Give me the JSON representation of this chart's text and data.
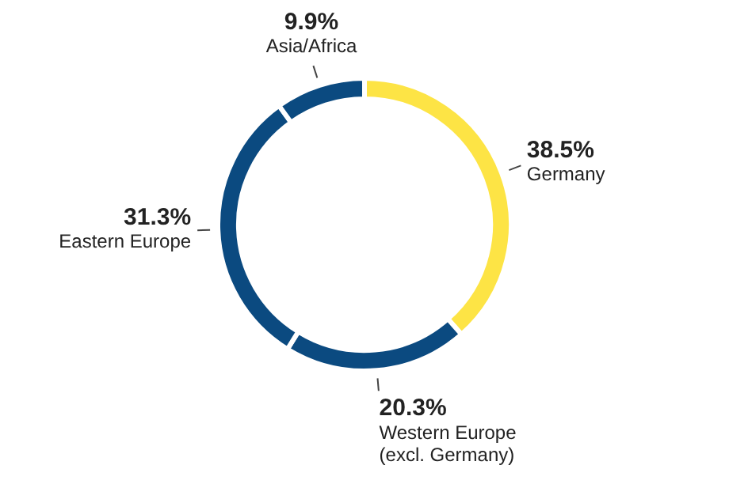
{
  "chart_data": {
    "type": "donut",
    "categories": [
      "Germany",
      "Western Europe (excl. Germany)",
      "Eastern Europe",
      "Asia/Africa"
    ],
    "values": [
      38.5,
      20.3,
      31.3,
      9.9
    ],
    "value_labels": [
      "38.5%",
      "20.3%",
      "31.3%",
      "9.9%"
    ],
    "colors": [
      "#fde445",
      "#0b4a80",
      "#0b4a80",
      "#0b4a80"
    ],
    "legend": false
  }
}
